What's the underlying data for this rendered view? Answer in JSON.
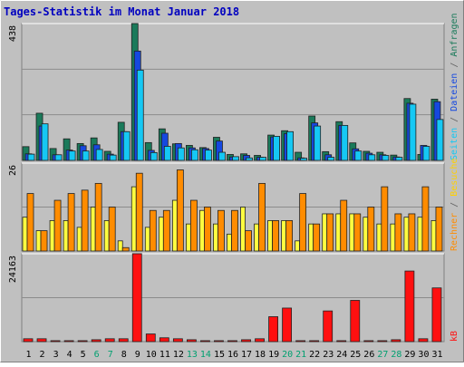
{
  "chart_data": [
    {
      "type": "bar",
      "title": "Tages-Statistik im Monat Januar 2018",
      "categories": [
        "1",
        "2",
        "3",
        "4",
        "5",
        "6",
        "7",
        "8",
        "9",
        "10",
        "11",
        "12",
        "13",
        "14",
        "15",
        "16",
        "17",
        "18",
        "19",
        "20",
        "21",
        "22",
        "23",
        "24",
        "25",
        "26",
        "27",
        "28",
        "29",
        "30",
        "31"
      ],
      "weekend_days": [
        "6",
        "7",
        "13",
        "14",
        "20",
        "21",
        "27",
        "28"
      ],
      "ymax_label": "438",
      "ylim": [
        0,
        438
      ],
      "grid": true,
      "legend": [
        "Anfragen",
        "Dateien",
        "Seiten"
      ],
      "series": [
        {
          "name": "Anfragen",
          "color": "#1a7a5a",
          "values": [
            44,
            151,
            38,
            69,
            54,
            72,
            29,
            122,
            438,
            57,
            101,
            53,
            48,
            41,
            74,
            19,
            21,
            16,
            81,
            95,
            26,
            142,
            28,
            124,
            56,
            29,
            26,
            17,
            198,
            19,
            196
          ]
        },
        {
          "name": "Dateien",
          "color": "#1548e0",
          "values": [
            21,
            110,
            18,
            33,
            47,
            50,
            20,
            92,
            350,
            32,
            87,
            54,
            40,
            38,
            62,
            11,
            16,
            10,
            75,
            86,
            8,
            120,
            18,
            112,
            37,
            23,
            18,
            11,
            183,
            48,
            188
          ]
        },
        {
          "name": "Seiten",
          "color": "#15c8f4",
          "values": [
            20,
            117,
            18,
            30,
            30,
            35,
            17,
            92,
            289,
            25,
            45,
            40,
            34,
            33,
            26,
            12,
            8,
            10,
            77,
            92,
            7,
            110,
            10,
            112,
            30,
            18,
            16,
            10,
            180,
            45,
            131
          ]
        }
      ]
    },
    {
      "type": "bar",
      "ymax_label": "26",
      "ylim": [
        0,
        26
      ],
      "grid": true,
      "legend": [
        "Rechner",
        "Besuche"
      ],
      "series": [
        {
          "name": "Besuche",
          "color": "#ff8c00",
          "values": [
            17,
            6,
            15,
            17,
            18,
            20,
            13,
            1,
            23,
            12,
            12,
            24,
            15,
            13,
            12,
            12,
            6,
            20,
            9,
            9,
            17,
            8,
            11,
            15,
            11,
            13,
            19,
            11,
            11,
            19,
            13
          ]
        },
        {
          "name": "Rechner",
          "color": "#ffff40",
          "values": [
            10,
            6,
            9,
            9,
            7,
            13,
            9,
            3,
            19,
            7,
            10,
            15,
            8,
            12,
            8,
            5,
            13,
            8,
            9,
            9,
            3,
            8,
            11,
            11,
            11,
            10,
            8,
            8,
            10,
            10,
            9
          ]
        }
      ]
    },
    {
      "type": "bar",
      "ymax_label": "24163",
      "ylim": [
        0,
        24163
      ],
      "grid": true,
      "legend": [
        "kB"
      ],
      "series": [
        {
          "name": "kB",
          "color": "#ff1010",
          "values": [
            791,
            791,
            264,
            264,
            264,
            527,
            791,
            791,
            24163,
            2110,
            1054,
            791,
            527,
            264,
            264,
            264,
            527,
            791,
            6855,
            9228,
            264,
            264,
            8437,
            264,
            11338,
            264,
            264,
            527,
            19408,
            791,
            14766
          ]
        }
      ]
    }
  ],
  "colors": {
    "background": "#c0c0c0",
    "frame_light": "#ffffff",
    "frame_dark": "#808080",
    "title": "#0000c0",
    "weekday_label": "#000000",
    "weekend_label": "#00a070",
    "legend_kb": "#ff1010",
    "legend_besuche": "#ff8c00",
    "legend_rechner": "#ffd000",
    "legend_anfragen": "#1a7a5a",
    "legend_dateien": "#1548e0",
    "legend_seiten": "#15c8f4"
  }
}
